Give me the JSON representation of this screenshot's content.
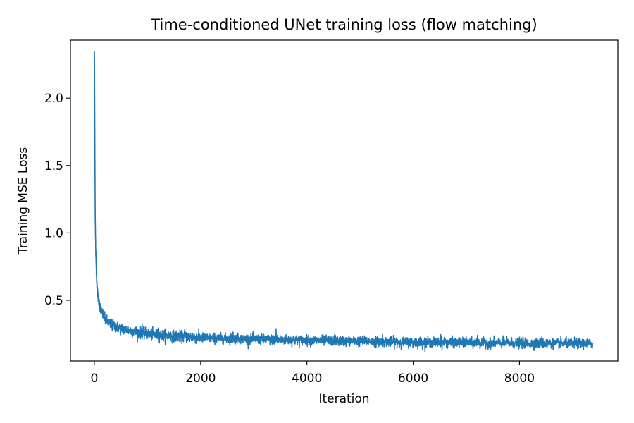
{
  "chart_data": {
    "type": "line",
    "title": "Time-conditioned UNet training loss (flow matching)",
    "xlabel": "Iteration",
    "ylabel": "Training MSE Loss",
    "xlim": [
      -450,
      9850
    ],
    "ylim": [
      0.05,
      2.43
    ],
    "xticks": [
      0,
      2000,
      4000,
      6000,
      8000
    ],
    "xtick_labels": [
      "0",
      "2000",
      "4000",
      "6000",
      "8000"
    ],
    "yticks": [
      0.5,
      1.0,
      1.5,
      2.0
    ],
    "ytick_labels": [
      "0.5",
      "1.0",
      "1.5",
      "2.0"
    ],
    "grid": false,
    "legend": "none",
    "colors": {
      "line": "#1f77b4",
      "axes": "#000000",
      "background": "#ffffff"
    },
    "series": [
      {
        "x_start": 0,
        "x_end": 9375,
        "noise": 0.018,
        "anchors": [
          [
            0,
            2.34
          ],
          [
            2,
            2.3
          ],
          [
            5,
            2.05
          ],
          [
            10,
            1.62
          ],
          [
            15,
            1.22
          ],
          [
            20,
            1.0
          ],
          [
            30,
            0.8
          ],
          [
            50,
            0.6
          ],
          [
            80,
            0.5
          ],
          [
            120,
            0.43
          ],
          [
            200,
            0.36
          ],
          [
            300,
            0.32
          ],
          [
            500,
            0.29
          ],
          [
            800,
            0.265
          ],
          [
            1000,
            0.25
          ],
          [
            1500,
            0.235
          ],
          [
            2000,
            0.222
          ],
          [
            3000,
            0.212
          ],
          [
            4000,
            0.203
          ],
          [
            5000,
            0.196
          ],
          [
            6000,
            0.19
          ],
          [
            7000,
            0.186
          ],
          [
            8000,
            0.182
          ],
          [
            9000,
            0.18
          ],
          [
            9375,
            0.18
          ]
        ],
        "spikes": [
          [
            900,
            0.32
          ],
          [
            1210,
            0.295
          ],
          [
            1700,
            0.285
          ],
          [
            2610,
            0.265
          ],
          [
            3420,
            0.29
          ],
          [
            4520,
            0.245
          ],
          [
            5420,
            0.245
          ],
          [
            6520,
            0.245
          ],
          [
            7210,
            0.24
          ],
          [
            8420,
            0.23
          ]
        ]
      }
    ]
  }
}
